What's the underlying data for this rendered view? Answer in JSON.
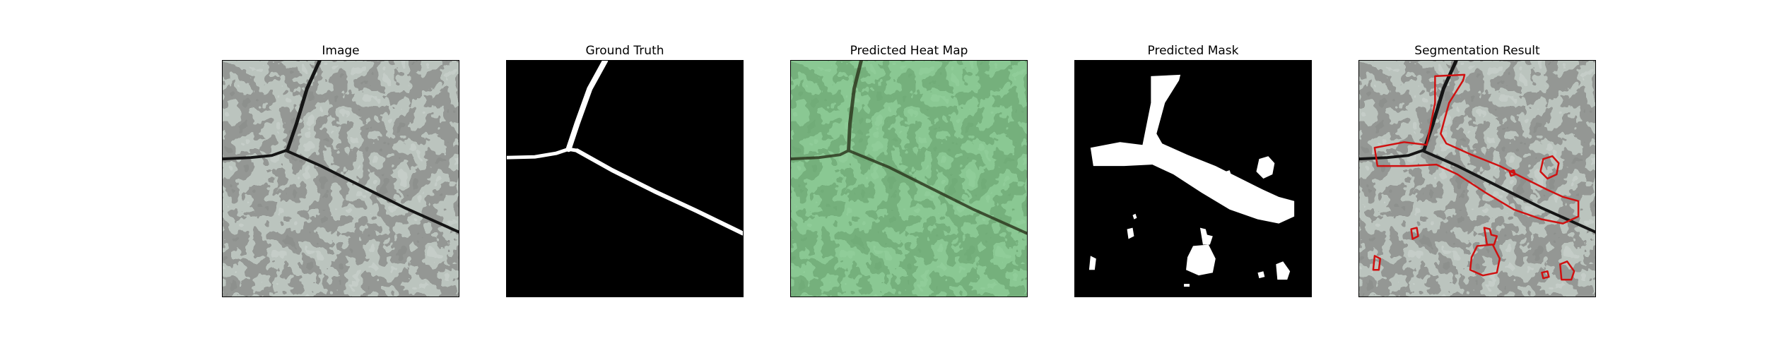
{
  "figure": {
    "panels": [
      {
        "title": "Image"
      },
      {
        "title": "Ground Truth"
      },
      {
        "title": "Predicted Heat Map"
      },
      {
        "title": "Predicted Mask"
      },
      {
        "title": "Segmentation Result"
      }
    ]
  },
  "colors": {
    "background": "#ffffff",
    "texture_light": "#8f9a92",
    "texture_dark": "#3e3f3e",
    "crack": "#151515",
    "mask_fg": "#ffffff",
    "mask_bg": "#000000",
    "heatmap_tint": "#4fcf5f",
    "contour": "#d01010"
  }
}
